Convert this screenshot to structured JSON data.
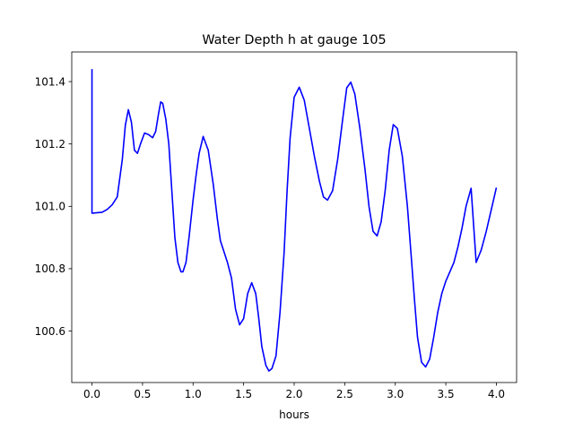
{
  "chart_data": {
    "type": "line",
    "title": "Water Depth h at gauge 105",
    "xlabel": "hours",
    "ylabel": "",
    "xlim": [
      -0.2,
      4.2
    ],
    "ylim": [
      100.435,
      101.495
    ],
    "x_ticks": [
      0.0,
      0.5,
      1.0,
      1.5,
      2.0,
      2.5,
      3.0,
      3.5,
      4.0
    ],
    "x_tick_labels": [
      "0.0",
      "0.5",
      "1.0",
      "1.5",
      "2.0",
      "2.5",
      "3.0",
      "3.5",
      "4.0"
    ],
    "y_ticks": [
      100.6,
      100.8,
      101.0,
      101.2,
      101.4
    ],
    "y_tick_labels": [
      "100.6",
      "100.8",
      "101.0",
      "101.2",
      "101.4"
    ],
    "grid": false,
    "legend": "none",
    "series": [
      {
        "color": "#0000ff",
        "x": [
          0.0,
          0.0,
          0.005,
          0.1,
          0.15,
          0.2,
          0.25,
          0.3,
          0.33,
          0.36,
          0.39,
          0.42,
          0.45,
          0.48,
          0.52,
          0.56,
          0.6,
          0.63,
          0.66,
          0.68,
          0.7,
          0.73,
          0.76,
          0.79,
          0.82,
          0.85,
          0.88,
          0.9,
          0.93,
          0.96,
          1.0,
          1.03,
          1.06,
          1.1,
          1.15,
          1.2,
          1.24,
          1.27,
          1.3,
          1.34,
          1.38,
          1.42,
          1.46,
          1.5,
          1.54,
          1.58,
          1.62,
          1.65,
          1.68,
          1.72,
          1.75,
          1.78,
          1.82,
          1.86,
          1.9,
          1.93,
          1.96,
          2.0,
          2.05,
          2.1,
          2.15,
          2.2,
          2.25,
          2.29,
          2.33,
          2.38,
          2.43,
          2.48,
          2.52,
          2.56,
          2.6,
          2.65,
          2.7,
          2.74,
          2.78,
          2.82,
          2.86,
          2.9,
          2.94,
          2.98,
          3.02,
          3.07,
          3.12,
          3.16,
          3.19,
          3.22,
          3.26,
          3.3,
          3.34,
          3.38,
          3.42,
          3.46,
          3.5,
          3.54,
          3.58,
          3.62,
          3.66,
          3.7,
          3.75,
          3.8,
          3.85,
          3.9,
          3.95,
          4.0
        ],
        "y": [
          101.44,
          100.978,
          100.978,
          100.981,
          100.99,
          101.005,
          101.03,
          101.15,
          101.26,
          101.31,
          101.27,
          101.18,
          101.17,
          101.2,
          101.235,
          101.23,
          101.22,
          101.24,
          101.3,
          101.335,
          101.33,
          101.28,
          101.2,
          101.05,
          100.9,
          100.82,
          100.79,
          100.79,
          100.82,
          100.9,
          101.02,
          101.1,
          101.17,
          101.224,
          101.18,
          101.07,
          100.96,
          100.89,
          100.86,
          100.82,
          100.77,
          100.67,
          100.62,
          100.64,
          100.72,
          100.755,
          100.72,
          100.64,
          100.55,
          100.49,
          100.472,
          100.48,
          100.52,
          100.66,
          100.85,
          101.05,
          101.22,
          101.35,
          101.382,
          101.34,
          101.25,
          101.16,
          101.08,
          101.03,
          101.02,
          101.05,
          101.15,
          101.28,
          101.38,
          101.398,
          101.36,
          101.25,
          101.12,
          101.0,
          100.92,
          100.905,
          100.95,
          101.05,
          101.18,
          101.262,
          101.25,
          101.16,
          101.0,
          100.83,
          100.7,
          100.58,
          100.5,
          100.485,
          100.51,
          100.58,
          100.66,
          100.72,
          100.76,
          100.79,
          100.82,
          100.87,
          100.93,
          101.0,
          101.058,
          100.82,
          100.86,
          100.92,
          100.99,
          101.06
        ]
      }
    ]
  }
}
